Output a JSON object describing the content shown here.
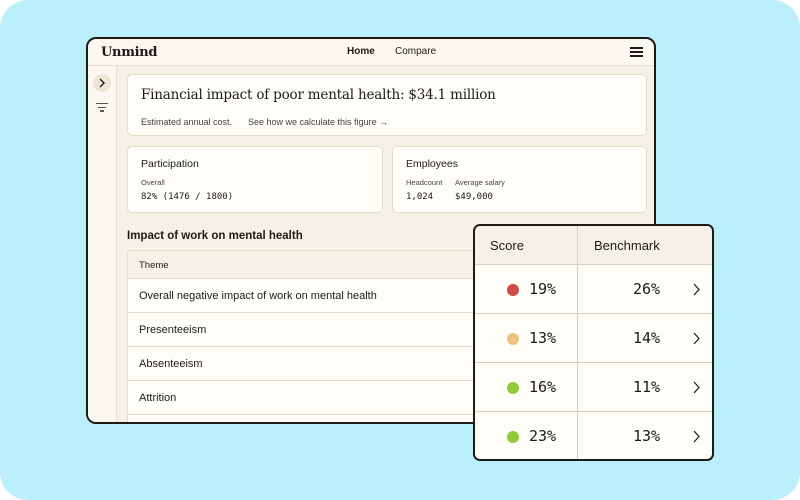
{
  "app": {
    "logo": "Unmind"
  },
  "nav": {
    "home": "Home",
    "compare": "Compare"
  },
  "financial": {
    "title": "Financial impact of poor mental health: $34.1 million",
    "subtitle": "Estimated annual cost.",
    "link": "See how we calculate this figure →"
  },
  "participation": {
    "title": "Participation",
    "label": "Overall",
    "value": "82% (1476 / 1800)"
  },
  "employees": {
    "title": "Employees",
    "headcount_label": "Headcount",
    "headcount_value": "1,024",
    "salary_label": "Average salary",
    "salary_value": "$49,000"
  },
  "impact": {
    "title": "Impact of work on mental health",
    "column": "Theme",
    "rows": [
      "Overall negative impact of work on mental health",
      "Presenteeism",
      "Absenteeism",
      "Attrition"
    ]
  },
  "scores": {
    "score_header": "Score",
    "benchmark_header": "Benchmark",
    "rows": [
      {
        "score": "19%",
        "benchmark": "26%",
        "color": "#cf4b45"
      },
      {
        "score": "13%",
        "benchmark": "14%",
        "color": "#ebc27f"
      },
      {
        "score": "16%",
        "benchmark": "11%",
        "color": "#8fcc35"
      },
      {
        "score": "23%",
        "benchmark": "13%",
        "color": "#8fcc35"
      }
    ]
  },
  "icons": {
    "menu": "hamburger-menu-icon",
    "expand": "chevron-right-icon",
    "filter": "filter-icon",
    "row": "chevron-right-icon"
  }
}
